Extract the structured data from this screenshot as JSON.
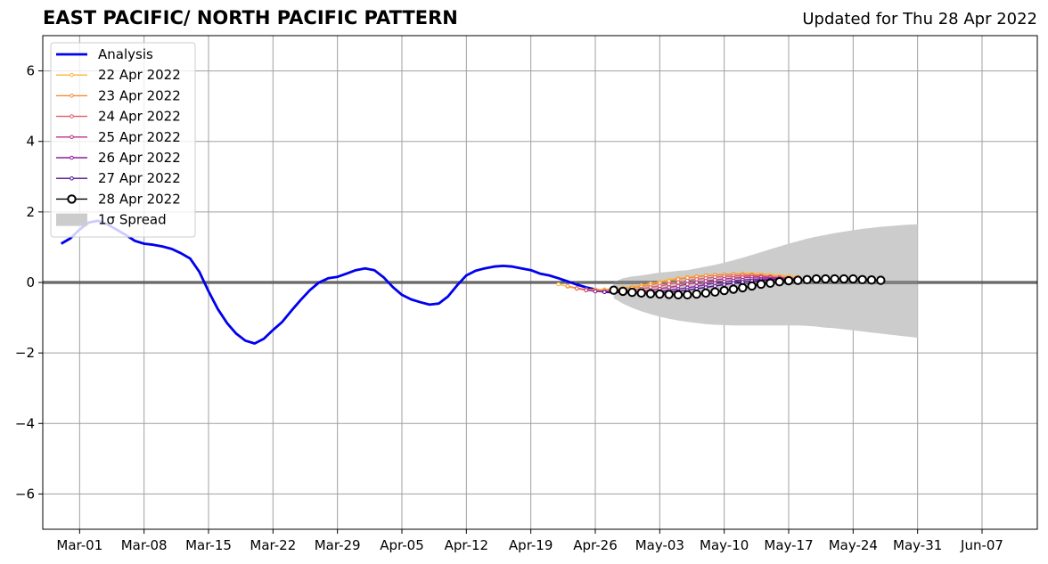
{
  "chart_data": {
    "type": "line",
    "title": "EAST PACIFIC/ NORTH PACIFIC PATTERN",
    "subtitle": "Updated for Thu 28 Apr 2022",
    "xlabel": "",
    "ylabel": "",
    "ylim": [
      -7,
      7
    ],
    "xlim": [
      "2022-02-25",
      "2022-06-13"
    ],
    "grid": true,
    "legend_position": "top-left",
    "x_ticks": [
      "Mar-01",
      "Mar-08",
      "Mar-15",
      "Mar-22",
      "Mar-29",
      "Apr-05",
      "Apr-12",
      "Apr-19",
      "Apr-26",
      "May-03",
      "May-10",
      "May-17",
      "May-24",
      "May-31",
      "Jun-07"
    ],
    "x_tick_dates": [
      "2022-03-01",
      "2022-03-08",
      "2022-03-15",
      "2022-03-22",
      "2022-03-29",
      "2022-04-05",
      "2022-04-12",
      "2022-04-19",
      "2022-04-26",
      "2022-05-03",
      "2022-05-10",
      "2022-05-17",
      "2022-05-24",
      "2022-05-31",
      "2022-06-07"
    ],
    "y_ticks": [
      -6,
      -4,
      -2,
      0,
      2,
      4,
      6
    ],
    "y_tick_labels": [
      "−6",
      "−4",
      "−2",
      "0",
      "2",
      "4",
      "6"
    ],
    "analysis": {
      "name": "Analysis",
      "color": "#0000ee",
      "start_date": "2022-02-27",
      "values": [
        1.1,
        1.25,
        1.5,
        1.7,
        1.75,
        1.65,
        1.5,
        1.35,
        1.18,
        1.1,
        1.07,
        1.02,
        0.95,
        0.83,
        0.68,
        0.3,
        -0.25,
        -0.75,
        -1.15,
        -1.45,
        -1.65,
        -1.73,
        -1.6,
        -1.35,
        -1.12,
        -0.8,
        -0.5,
        -0.22,
        0.0,
        0.12,
        0.16,
        0.25,
        0.35,
        0.4,
        0.35,
        0.15,
        -0.13,
        -0.35,
        -0.48,
        -0.56,
        -0.63,
        -0.6,
        -0.4,
        -0.08,
        0.2,
        0.33,
        0.4,
        0.45,
        0.47,
        0.45,
        0.4,
        0.35,
        0.25,
        0.2,
        0.12,
        0.03,
        -0.06,
        -0.14,
        -0.2,
        -0.26,
        -0.28
      ]
    },
    "forecast_series": [
      {
        "name": "22 Apr 2022",
        "color": "#fbb33f",
        "start_date": "2022-04-22",
        "values": [
          -0.05,
          -0.12,
          -0.18,
          -0.2,
          -0.2,
          -0.2,
          -0.18,
          -0.15,
          -0.12,
          -0.08,
          -0.03,
          0.02,
          0.08,
          0.12,
          0.15,
          0.18,
          0.2,
          0.22,
          0.23,
          0.24,
          0.25,
          0.25,
          0.24,
          0.22,
          0.2,
          0.18,
          0.16
        ]
      },
      {
        "name": "23 Apr 2022",
        "color": "#f58a3a",
        "start_date": "2022-04-23",
        "values": [
          -0.1,
          -0.16,
          -0.2,
          -0.22,
          -0.22,
          -0.2,
          -0.18,
          -0.15,
          -0.12,
          -0.07,
          -0.02,
          0.04,
          0.09,
          0.13,
          0.16,
          0.19,
          0.21,
          0.22,
          0.23,
          0.23,
          0.22,
          0.2,
          0.18,
          0.16,
          0.14,
          0.13
        ]
      },
      {
        "name": "24 Apr 2022",
        "color": "#df5a6a",
        "start_date": "2022-04-24",
        "values": [
          -0.17,
          -0.22,
          -0.25,
          -0.26,
          -0.25,
          -0.23,
          -0.21,
          -0.18,
          -0.14,
          -0.1,
          -0.05,
          0.0,
          0.05,
          0.09,
          0.12,
          0.15,
          0.17,
          0.18,
          0.19,
          0.19,
          0.18,
          0.16,
          0.14,
          0.12,
          0.11
        ]
      },
      {
        "name": "25 Apr 2022",
        "color": "#b83285",
        "start_date": "2022-04-25",
        "values": [
          -0.22,
          -0.25,
          -0.27,
          -0.28,
          -0.27,
          -0.26,
          -0.25,
          -0.22,
          -0.18,
          -0.14,
          -0.1,
          -0.05,
          0.0,
          0.04,
          0.07,
          0.1,
          0.12,
          0.14,
          0.15,
          0.15,
          0.14,
          0.13,
          0.12,
          0.1
        ]
      },
      {
        "name": "26 Apr 2022",
        "color": "#8a1fa0",
        "start_date": "2022-04-26",
        "values": [
          -0.25,
          -0.27,
          -0.28,
          -0.29,
          -0.29,
          -0.28,
          -0.27,
          -0.25,
          -0.22,
          -0.19,
          -0.15,
          -0.11,
          -0.06,
          -0.02,
          0.02,
          0.05,
          0.07,
          0.09,
          0.1,
          0.1,
          0.1,
          0.09,
          0.08
        ]
      },
      {
        "name": "27 Apr 2022",
        "color": "#4b0f8c",
        "start_date": "2022-04-27",
        "values": [
          -0.27,
          -0.28,
          -0.29,
          -0.3,
          -0.3,
          -0.3,
          -0.29,
          -0.27,
          -0.25,
          -0.22,
          -0.18,
          -0.14,
          -0.1,
          -0.06,
          -0.02,
          0.01,
          0.04,
          0.06,
          0.07,
          0.07,
          0.07,
          0.07
        ]
      },
      {
        "name": "28 Apr 2022",
        "color": "#000000",
        "start_date": "2022-04-28",
        "values": [
          -0.22,
          -0.25,
          -0.28,
          -0.3,
          -0.32,
          -0.33,
          -0.34,
          -0.35,
          -0.35,
          -0.33,
          -0.3,
          -0.27,
          -0.23,
          -0.19,
          -0.15,
          -0.1,
          -0.05,
          -0.02,
          0.02,
          0.05,
          0.06,
          0.08,
          0.1,
          0.1,
          0.1,
          0.1,
          0.1,
          0.08,
          0.07,
          0.06
        ]
      }
    ],
    "spread": {
      "name": "1σ Spread",
      "color": "#cccccc",
      "start_date": "2022-04-28",
      "upper": [
        0.0,
        0.12,
        0.17,
        0.2,
        0.24,
        0.28,
        0.3,
        0.33,
        0.35,
        0.4,
        0.45,
        0.5,
        0.56,
        0.63,
        0.7,
        0.78,
        0.86,
        0.94,
        1.02,
        1.1,
        1.17,
        1.24,
        1.3,
        1.35,
        1.4,
        1.44,
        1.48,
        1.52,
        1.55,
        1.58,
        1.6,
        1.62,
        1.64,
        1.65
      ],
      "lower": [
        -0.45,
        -0.6,
        -0.72,
        -0.82,
        -0.9,
        -0.97,
        -1.03,
        -1.08,
        -1.12,
        -1.15,
        -1.18,
        -1.2,
        -1.21,
        -1.22,
        -1.22,
        -1.22,
        -1.22,
        -1.22,
        -1.22,
        -1.22,
        -1.22,
        -1.23,
        -1.25,
        -1.28,
        -1.3,
        -1.33,
        -1.36,
        -1.39,
        -1.42,
        -1.45,
        -1.48,
        -1.51,
        -1.54,
        -1.57
      ]
    }
  }
}
